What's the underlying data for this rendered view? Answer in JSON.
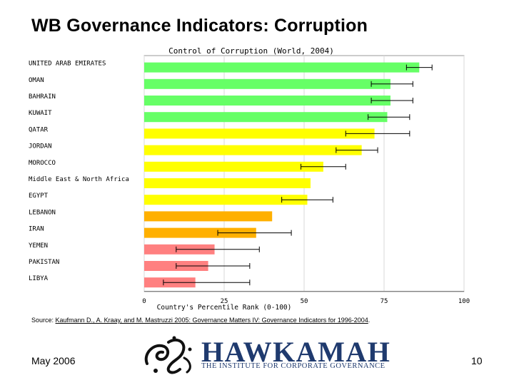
{
  "slide": {
    "title": "WB Governance Indicators: Corruption",
    "source_prefix": "Source: ",
    "source_link": "Kaufmann D., A. Kraay, and M. Mastruzzi 2005: Governance Matters IV: Governance Indicators for 1996-2004",
    "source_suffix": ".",
    "date": "May 2006",
    "page_number": "10"
  },
  "logo": {
    "word": "HAWKAMAH",
    "tagline": "THE INSTITUTE FOR CORPORATE GOVERNANCE",
    "colors": {
      "word": "#1f3a6e",
      "tagline": "#1f3a6e",
      "emblem": "#111111"
    }
  },
  "chart_data": {
    "type": "bar",
    "orientation": "horizontal",
    "title": "Control of Corruption (World, 2004)",
    "xlabel": "Country's Percentile Rank (0-100)",
    "xlim": [
      0,
      100
    ],
    "xticks": [
      0,
      25,
      50,
      75,
      100
    ],
    "grid": true,
    "categories": [
      "UNITED ARAB EMIRATES",
      "OMAN",
      "BAHRAIN",
      "KUWAIT",
      "QATAR",
      "JORDAN",
      "MOROCCO",
      "Middle East & North Africa",
      "EGYPT",
      "LEBANON",
      "IRAN",
      "YEMEN",
      "PAKISTAN",
      "LIBYA"
    ],
    "values": [
      86,
      77,
      77,
      76,
      72,
      68,
      56,
      52,
      51,
      40,
      35,
      22,
      20,
      16
    ],
    "error_low": [
      82,
      71,
      71,
      70,
      63,
      60,
      49,
      null,
      43,
      null,
      23,
      10,
      10,
      6
    ],
    "error_high": [
      90,
      84,
      84,
      83,
      83,
      73,
      63,
      null,
      59,
      null,
      46,
      36,
      33,
      33
    ],
    "colors": [
      "#66ff66",
      "#66ff66",
      "#66ff66",
      "#66ff66",
      "#ffff00",
      "#ffff00",
      "#ffff00",
      "#ffff00",
      "#ffff00",
      "#ffb000",
      "#ffb000",
      "#ff8080",
      "#ff8080",
      "#ff8080"
    ]
  }
}
